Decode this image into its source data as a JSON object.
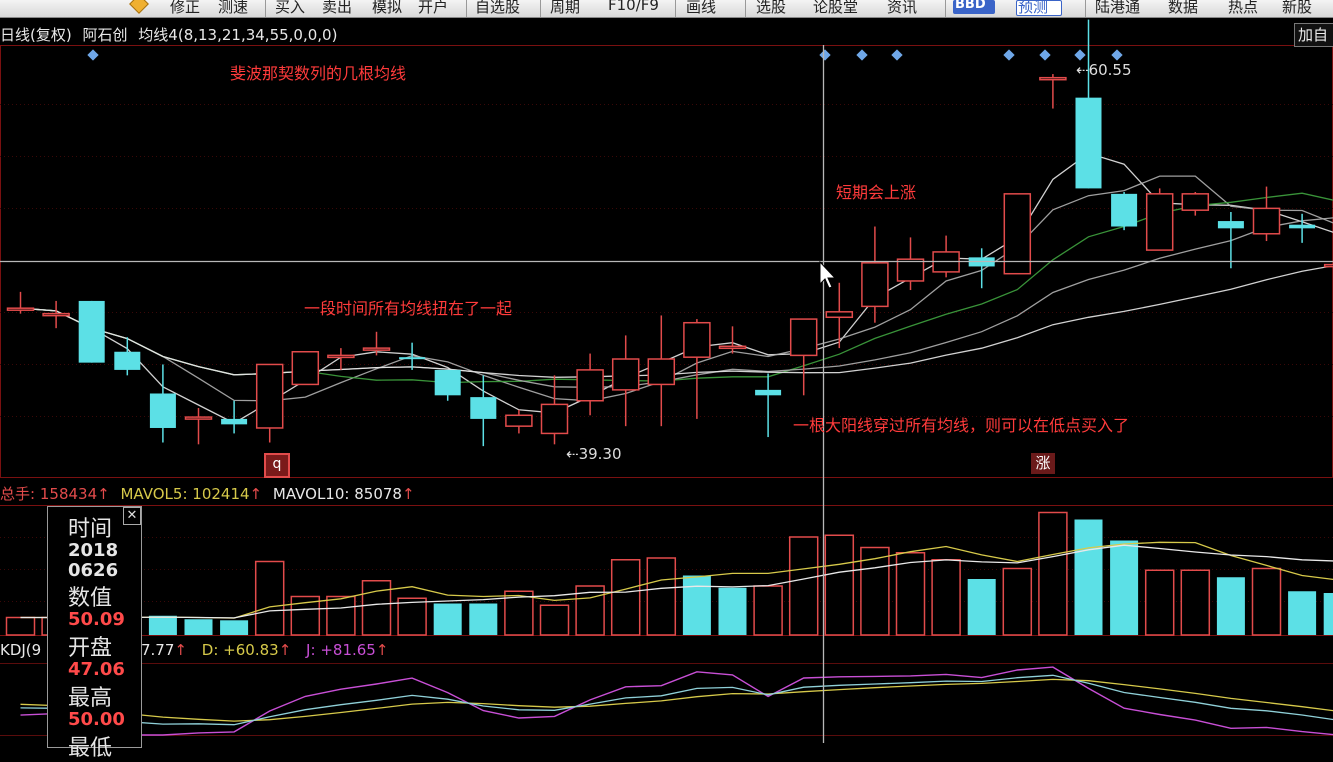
{
  "toolbar": {
    "items": [
      "修正",
      "测速",
      "买入",
      "卖出",
      "模拟",
      "开户",
      "自选股",
      "周期",
      "F10/F9",
      "画线",
      "选股",
      "论股堂",
      "资讯",
      "BBD",
      "预测",
      "陆港通",
      "数据",
      "热点",
      "新股"
    ]
  },
  "header": {
    "period": "日线(复权)",
    "stock_name": "阿石创",
    "indicator": "均线4(8,13,21,34,55,0,0,0)",
    "add_button": "加自"
  },
  "annotations": {
    "fibonacci": "斐波那契数列的几根均线",
    "tangled": "一段时间所有均线扭在了一起",
    "short_rise": "短期会上涨",
    "big_yang": "一根大阳线穿过所有均线，则可以在低点买入了"
  },
  "markers": {
    "q_label": "q",
    "zhang_label": "涨"
  },
  "volume_header": {
    "total_label": "总手",
    "total_value": "158434",
    "mavol5_label": "MAVOL5",
    "mavol5_value": "102414",
    "mavol10_label": "MAVOL10",
    "mavol10_value": "85078"
  },
  "kdj_header": {
    "name": "KDJ(9",
    "k_value": "7.77",
    "d_label": "D",
    "d_value": "+60.83",
    "j_label": "J",
    "j_value": "+81.65"
  },
  "info_panel": {
    "time_label": "时间",
    "year": "2018",
    "date": "0626",
    "value_label": "数值",
    "value": "50.09",
    "open_label": "开盘",
    "open": "47.06",
    "high_label": "最高",
    "high": "50.00",
    "low_label": "最低"
  },
  "colors": {
    "up": "#e24b4b",
    "down": "#5ce0e6",
    "ma_white": "#e8e8e8",
    "ma_gray": "#b0b0b0",
    "ma_green": "#3fa33f",
    "ma_yellow": "#d6c94a",
    "kdj_purple": "#c84fd6",
    "annotation": "#ff3b3b"
  },
  "chart_data": {
    "type": "candlestick",
    "price_labels": {
      "high": "60.55",
      "low": "39.30"
    },
    "candles": [
      {
        "o": 44.6,
        "c": 44.6,
        "h": 45.5,
        "l": 44.3
      },
      {
        "o": 44.3,
        "c": 44.3,
        "h": 45.0,
        "l": 43.5
      },
      {
        "o": 45.0,
        "c": 41.6,
        "h": 45.0,
        "l": 41.6
      },
      {
        "o": 42.2,
        "c": 41.2,
        "h": 43.0,
        "l": 40.9
      },
      {
        "o": 39.9,
        "c": 38.0,
        "h": 41.5,
        "l": 37.2
      },
      {
        "o": 38.6,
        "c": 38.6,
        "h": 39.1,
        "l": 37.1
      },
      {
        "o": 38.5,
        "c": 38.2,
        "h": 39.5,
        "l": 37.7
      },
      {
        "o": 38.0,
        "c": 41.5,
        "h": 41.5,
        "l": 37.2
      },
      {
        "o": 40.4,
        "c": 42.2,
        "h": 42.2,
        "l": 40.4
      },
      {
        "o": 42.0,
        "c": 42.0,
        "h": 42.4,
        "l": 41.2
      },
      {
        "o": 42.4,
        "c": 42.4,
        "h": 43.3,
        "l": 42.0
      },
      {
        "o": 41.9,
        "c": 41.8,
        "h": 42.7,
        "l": 41.2
      },
      {
        "o": 41.2,
        "c": 39.8,
        "h": 41.2,
        "l": 39.5
      },
      {
        "o": 39.7,
        "c": 38.5,
        "h": 40.9,
        "l": 37.0
      },
      {
        "o": 38.1,
        "c": 38.7,
        "h": 39.0,
        "l": 37.7
      },
      {
        "o": 37.7,
        "c": 39.3,
        "h": 40.9,
        "l": 37.1
      },
      {
        "o": 39.5,
        "c": 41.2,
        "h": 42.1,
        "l": 38.7
      },
      {
        "o": 40.1,
        "c": 41.8,
        "h": 43.1,
        "l": 38.1
      },
      {
        "o": 40.4,
        "c": 41.8,
        "h": 44.2,
        "l": 38.1
      },
      {
        "o": 41.9,
        "c": 43.8,
        "h": 44.0,
        "l": 38.5
      },
      {
        "o": 42.5,
        "c": 42.5,
        "h": 43.6,
        "l": 42.1
      },
      {
        "o": 40.1,
        "c": 39.8,
        "h": 41.0,
        "l": 37.5
      },
      {
        "o": 42.0,
        "c": 44.0,
        "h": 44.0,
        "l": 39.8
      },
      {
        "o": 44.1,
        "c": 44.4,
        "h": 46.0,
        "l": 42.4
      },
      {
        "o": 44.7,
        "c": 47.1,
        "h": 49.1,
        "l": 43.8
      },
      {
        "o": 46.1,
        "c": 47.3,
        "h": 48.5,
        "l": 45.6
      },
      {
        "o": 46.6,
        "c": 47.7,
        "h": 48.6,
        "l": 46.3
      },
      {
        "o": 47.4,
        "c": 46.9,
        "h": 47.9,
        "l": 45.7
      },
      {
        "o": 46.5,
        "c": 50.9,
        "h": 50.9,
        "l": 46.5
      },
      {
        "o": 57.3,
        "c": 57.3,
        "h": 57.5,
        "l": 55.6
      },
      {
        "o": 56.2,
        "c": 51.2,
        "h": 60.5,
        "l": 51.2
      },
      {
        "o": 50.9,
        "c": 49.1,
        "h": 51.0,
        "l": 48.9
      },
      {
        "o": 47.8,
        "c": 50.9,
        "h": 51.2,
        "l": 47.8
      },
      {
        "o": 50.0,
        "c": 50.9,
        "h": 51.0,
        "l": 49.7
      },
      {
        "o": 49.4,
        "c": 49.0,
        "h": 49.9,
        "l": 46.8
      },
      {
        "o": 48.7,
        "c": 50.1,
        "h": 51.3,
        "l": 48.3
      },
      {
        "o": 49.2,
        "c": 49.0,
        "h": 49.8,
        "l": 48.2
      },
      {
        "o": 47.0,
        "c": 47.0,
        "h": 48.0,
        "l": 46.0
      }
    ],
    "volume": [
      {
        "v": 5000,
        "up": true
      },
      {
        "v": 5000,
        "up": true
      },
      {
        "v": 5000,
        "up": true
      },
      {
        "v": 5000,
        "up": false
      },
      {
        "v": 5500,
        "up": false
      },
      {
        "v": 4500,
        "up": false
      },
      {
        "v": 4200,
        "up": false
      },
      {
        "v": 21000,
        "up": true
      },
      {
        "v": 11000,
        "up": true
      },
      {
        "v": 11000,
        "up": true
      },
      {
        "v": 15500,
        "up": true
      },
      {
        "v": 10500,
        "up": true
      },
      {
        "v": 9000,
        "up": false
      },
      {
        "v": 9000,
        "up": false
      },
      {
        "v": 12500,
        "up": true
      },
      {
        "v": 8500,
        "up": true
      },
      {
        "v": 14000,
        "up": true
      },
      {
        "v": 21500,
        "up": true
      },
      {
        "v": 22000,
        "up": true
      },
      {
        "v": 17000,
        "up": false
      },
      {
        "v": 13500,
        "up": false
      },
      {
        "v": 14000,
        "up": true
      },
      {
        "v": 28000,
        "up": true
      },
      {
        "v": 28500,
        "up": true
      },
      {
        "v": 25000,
        "up": true
      },
      {
        "v": 23500,
        "up": true
      },
      {
        "v": 21500,
        "up": true
      },
      {
        "v": 16000,
        "up": false
      },
      {
        "v": 19000,
        "up": true
      },
      {
        "v": 35000,
        "up": true
      },
      {
        "v": 33000,
        "up": false
      },
      {
        "v": 27000,
        "up": false
      },
      {
        "v": 18500,
        "up": true
      },
      {
        "v": 18500,
        "up": true
      },
      {
        "v": 16500,
        "up": false
      },
      {
        "v": 19000,
        "up": true
      },
      {
        "v": 12500,
        "up": false
      },
      {
        "v": 12000,
        "up": false
      }
    ]
  }
}
